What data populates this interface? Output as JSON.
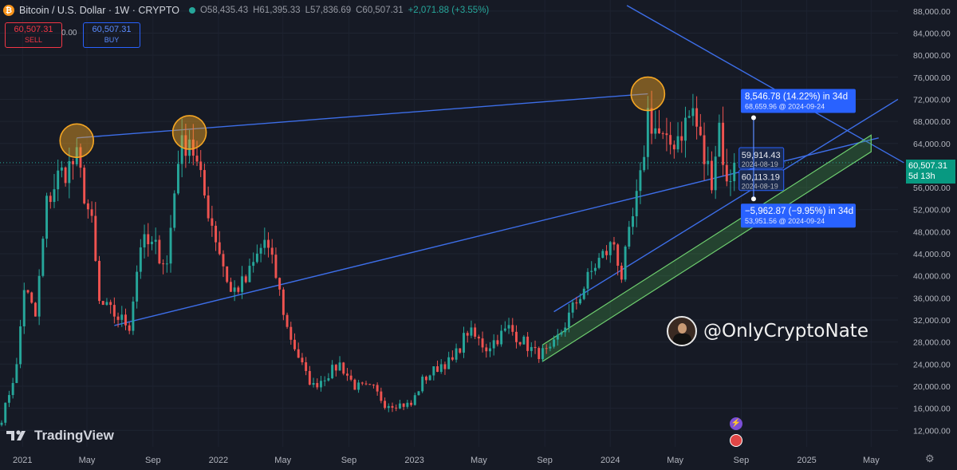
{
  "header": {
    "symbol": "Bitcoin / U.S. Dollar · 1W · CRYPTO",
    "open": "O58,435.43",
    "high": "H61,395.33",
    "low": "L57,836.69",
    "close": "C60,507.31",
    "change": "+2,071.88 (+3.55%)"
  },
  "trade": {
    "sell_price": "60,507.31",
    "sell_label": "SELL",
    "spread": "0.00",
    "buy_price": "60,507.31",
    "buy_label": "BUY"
  },
  "last_price": {
    "price": "60,507.31",
    "countdown": "5d 13h"
  },
  "branding": {
    "logo": "TradingView",
    "watermark": "@OnlyCryptoNate"
  },
  "colors": {
    "background": "#161a25",
    "up": "#26a69a",
    "down": "#ef5350",
    "trendline": "#3d6ee8",
    "channel": "#5cb85c",
    "circle": "#f5a623",
    "label": "#2962ff"
  },
  "chart_data": {
    "type": "candlestick",
    "title": "Bitcoin / U.S. Dollar · 1W · CRYPTO",
    "y_ticks": [
      12000,
      16000,
      20000,
      24000,
      28000,
      32000,
      36000,
      40000,
      44000,
      48000,
      52000,
      56000,
      60000,
      64000,
      68000,
      72000,
      76000,
      80000,
      84000,
      88000
    ],
    "y_tick_labels": [
      "12,000.00",
      "16,000.00",
      "20,000.00",
      "24,000.00",
      "28,000.00",
      "32,000.00",
      "36,000.00",
      "40,000.00",
      "44,000.00",
      "48,000.00",
      "52,000.00",
      "56,000.00",
      "60,000.00",
      "64,000.00",
      "68,000.00",
      "72,000.00",
      "76,000.00",
      "80,000.00",
      "84,000.00",
      "88,000.00"
    ],
    "ylim": [
      9000,
      90000
    ],
    "x_ticks": [
      {
        "label": "2021",
        "date": "2021-01-01"
      },
      {
        "label": "May",
        "date": "2021-05-01"
      },
      {
        "label": "Sep",
        "date": "2021-09-01"
      },
      {
        "label": "2022",
        "date": "2022-01-01"
      },
      {
        "label": "May",
        "date": "2022-05-01"
      },
      {
        "label": "Sep",
        "date": "2022-09-01"
      },
      {
        "label": "2023",
        "date": "2023-01-01"
      },
      {
        "label": "May",
        "date": "2023-05-01"
      },
      {
        "label": "Sep",
        "date": "2023-09-01"
      },
      {
        "label": "2024",
        "date": "2024-01-01"
      },
      {
        "label": "May",
        "date": "2024-05-01"
      },
      {
        "label": "Sep",
        "date": "2024-09-01"
      },
      {
        "label": "2025",
        "date": "2025-01-01"
      },
      {
        "label": "May",
        "date": "2025-05-01"
      }
    ],
    "xlim": [
      "2020-11-20",
      "2025-06-20"
    ],
    "price_path": [
      [
        "2020-11-23",
        14000
      ],
      [
        "2020-12-21",
        23500
      ],
      [
        "2021-01-04",
        38000
      ],
      [
        "2021-01-25",
        32500
      ],
      [
        "2021-02-15",
        53000
      ],
      [
        "2021-03-08",
        58000
      ],
      [
        "2021-04-12",
        61000
      ],
      [
        "2021-05-10",
        49000
      ],
      [
        "2021-05-24",
        35000
      ],
      [
        "2021-06-21",
        33000
      ],
      [
        "2021-07-19",
        31000
      ],
      [
        "2021-08-09",
        46000
      ],
      [
        "2021-09-06",
        45000
      ],
      [
        "2021-09-27",
        42000
      ],
      [
        "2021-10-18",
        62000
      ],
      [
        "2021-11-08",
        65500
      ],
      [
        "2021-11-29",
        57000
      ],
      [
        "2021-12-27",
        47000
      ],
      [
        "2022-01-24",
        37000
      ],
      [
        "2022-02-21",
        39000
      ],
      [
        "2022-03-28",
        46500
      ],
      [
        "2022-04-18",
        40000
      ],
      [
        "2022-05-09",
        30500
      ],
      [
        "2022-06-13",
        22000
      ],
      [
        "2022-06-27",
        20000
      ],
      [
        "2022-08-15",
        24000
      ],
      [
        "2022-09-12",
        20000
      ],
      [
        "2022-10-17",
        19500
      ],
      [
        "2022-11-07",
        16800
      ],
      [
        "2022-12-26",
        16600
      ],
      [
        "2023-01-16",
        21000
      ],
      [
        "2023-02-20",
        24000
      ],
      [
        "2023-03-13",
        24500
      ],
      [
        "2023-04-10",
        30000
      ],
      [
        "2023-05-15",
        27000
      ],
      [
        "2023-06-26",
        30500
      ],
      [
        "2023-08-14",
        26000
      ],
      [
        "2023-09-11",
        26000
      ],
      [
        "2023-10-23",
        34000
      ],
      [
        "2023-12-04",
        42000
      ],
      [
        "2024-01-08",
        46000
      ],
      [
        "2024-01-22",
        40000
      ],
      [
        "2024-02-26",
        57000
      ],
      [
        "2024-03-11",
        69500
      ],
      [
        "2024-03-18",
        68000
      ],
      [
        "2024-04-15",
        63000
      ],
      [
        "2024-05-13",
        66500
      ],
      [
        "2024-06-03",
        70000
      ],
      [
        "2024-06-24",
        61000
      ],
      [
        "2024-07-08",
        58000
      ],
      [
        "2024-07-22",
        67500
      ],
      [
        "2024-08-05",
        56000
      ],
      [
        "2024-08-19",
        60507
      ]
    ],
    "annotations": [
      {
        "kind": "circle",
        "date": "2021-04-12",
        "price": 64500
      },
      {
        "kind": "circle",
        "date": "2021-11-08",
        "price": 66000
      },
      {
        "kind": "circle",
        "date": "2024-03-11",
        "price": 73000
      },
      {
        "kind": "price_label",
        "date": "2024-08-19",
        "text": "59,914.43",
        "subtext": "2024-08-19",
        "price": 61500
      },
      {
        "kind": "price_label",
        "date": "2024-08-19",
        "text": "60,113.19",
        "subtext": "2024-08-19",
        "price": 57500
      },
      {
        "kind": "projection",
        "text": "8,546.78 (14.22%) in 34d",
        "subtext": "68,659.96 @ 2024-09-24",
        "price": 68659.96,
        "date": "2024-09-24"
      },
      {
        "kind": "projection",
        "text": "−5,962.87 (−9.95%) in 34d",
        "subtext": "53,951.56 @ 2024-09-24",
        "price": 53951.56,
        "date": "2024-09-24"
      }
    ],
    "trendlines": [
      {
        "from": [
          "2021-04-12",
          65000
        ],
        "to": [
          "2024-03-11",
          73000
        ]
      },
      {
        "from": [
          "2021-06-21",
          31000
        ],
        "to": [
          "2025-05-15",
          65000
        ]
      },
      {
        "from": [
          "2024-02-01",
          89000
        ],
        "to": [
          "2025-07-01",
          60500
        ]
      },
      {
        "from": [
          "2023-09-18",
          33500
        ],
        "to": [
          "2025-06-20",
          72000
        ]
      }
    ],
    "channel": {
      "lower_from": [
        "2023-08-28",
        24500
      ],
      "lower_to": [
        "2025-05-01",
        62500
      ],
      "width_price": 3000
    }
  }
}
